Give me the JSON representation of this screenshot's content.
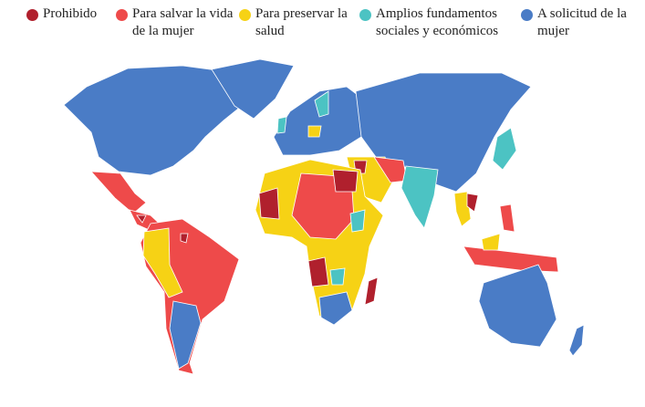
{
  "legend": {
    "items": [
      {
        "label": "Prohibido",
        "color": "#b0202d"
      },
      {
        "label": "Para salvar la vida de la mujer",
        "color": "#ee4a4a"
      },
      {
        "label": "Para preservar la salud",
        "color": "#f6d215"
      },
      {
        "label": "Amplios fundamentos sociales y económicos",
        "color": "#4cc3c3"
      },
      {
        "label": "A solicitud de la mujer",
        "color": "#4a7cc6"
      }
    ]
  }
}
